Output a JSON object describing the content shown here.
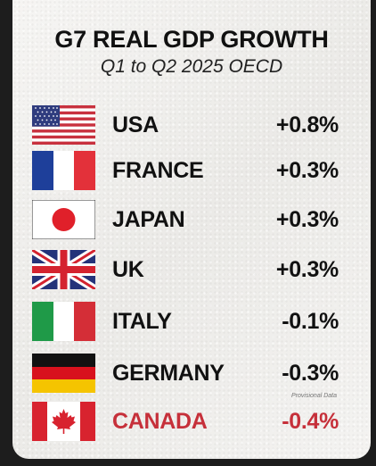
{
  "header": {
    "title": "G7 REAL GDP GROWTH",
    "subtitle": "Q1 to Q2 2025 OECD"
  },
  "rows": [
    {
      "country": "USA",
      "value": "+0.8%",
      "flag": "us-flag-icon"
    },
    {
      "country": "FRANCE",
      "value": "+0.3%",
      "flag": "france-flag-icon"
    },
    {
      "country": "JAPAN",
      "value": "+0.3%",
      "flag": "japan-flag-icon"
    },
    {
      "country": "UK",
      "value": "+0.3%",
      "flag": "uk-flag-icon"
    },
    {
      "country": "ITALY",
      "value": "-0.1%",
      "flag": "italy-flag-icon"
    },
    {
      "country": "GERMANY",
      "value": "-0.3%",
      "flag": "germany-flag-icon"
    },
    {
      "country": "CANADA",
      "value": "-0.4%",
      "flag": "canada-flag-icon",
      "highlight": true
    }
  ],
  "footnote": "Provisional Data",
  "colors": {
    "text": "#111111",
    "highlight": "#c6303a",
    "background": "#f1f0ee"
  }
}
